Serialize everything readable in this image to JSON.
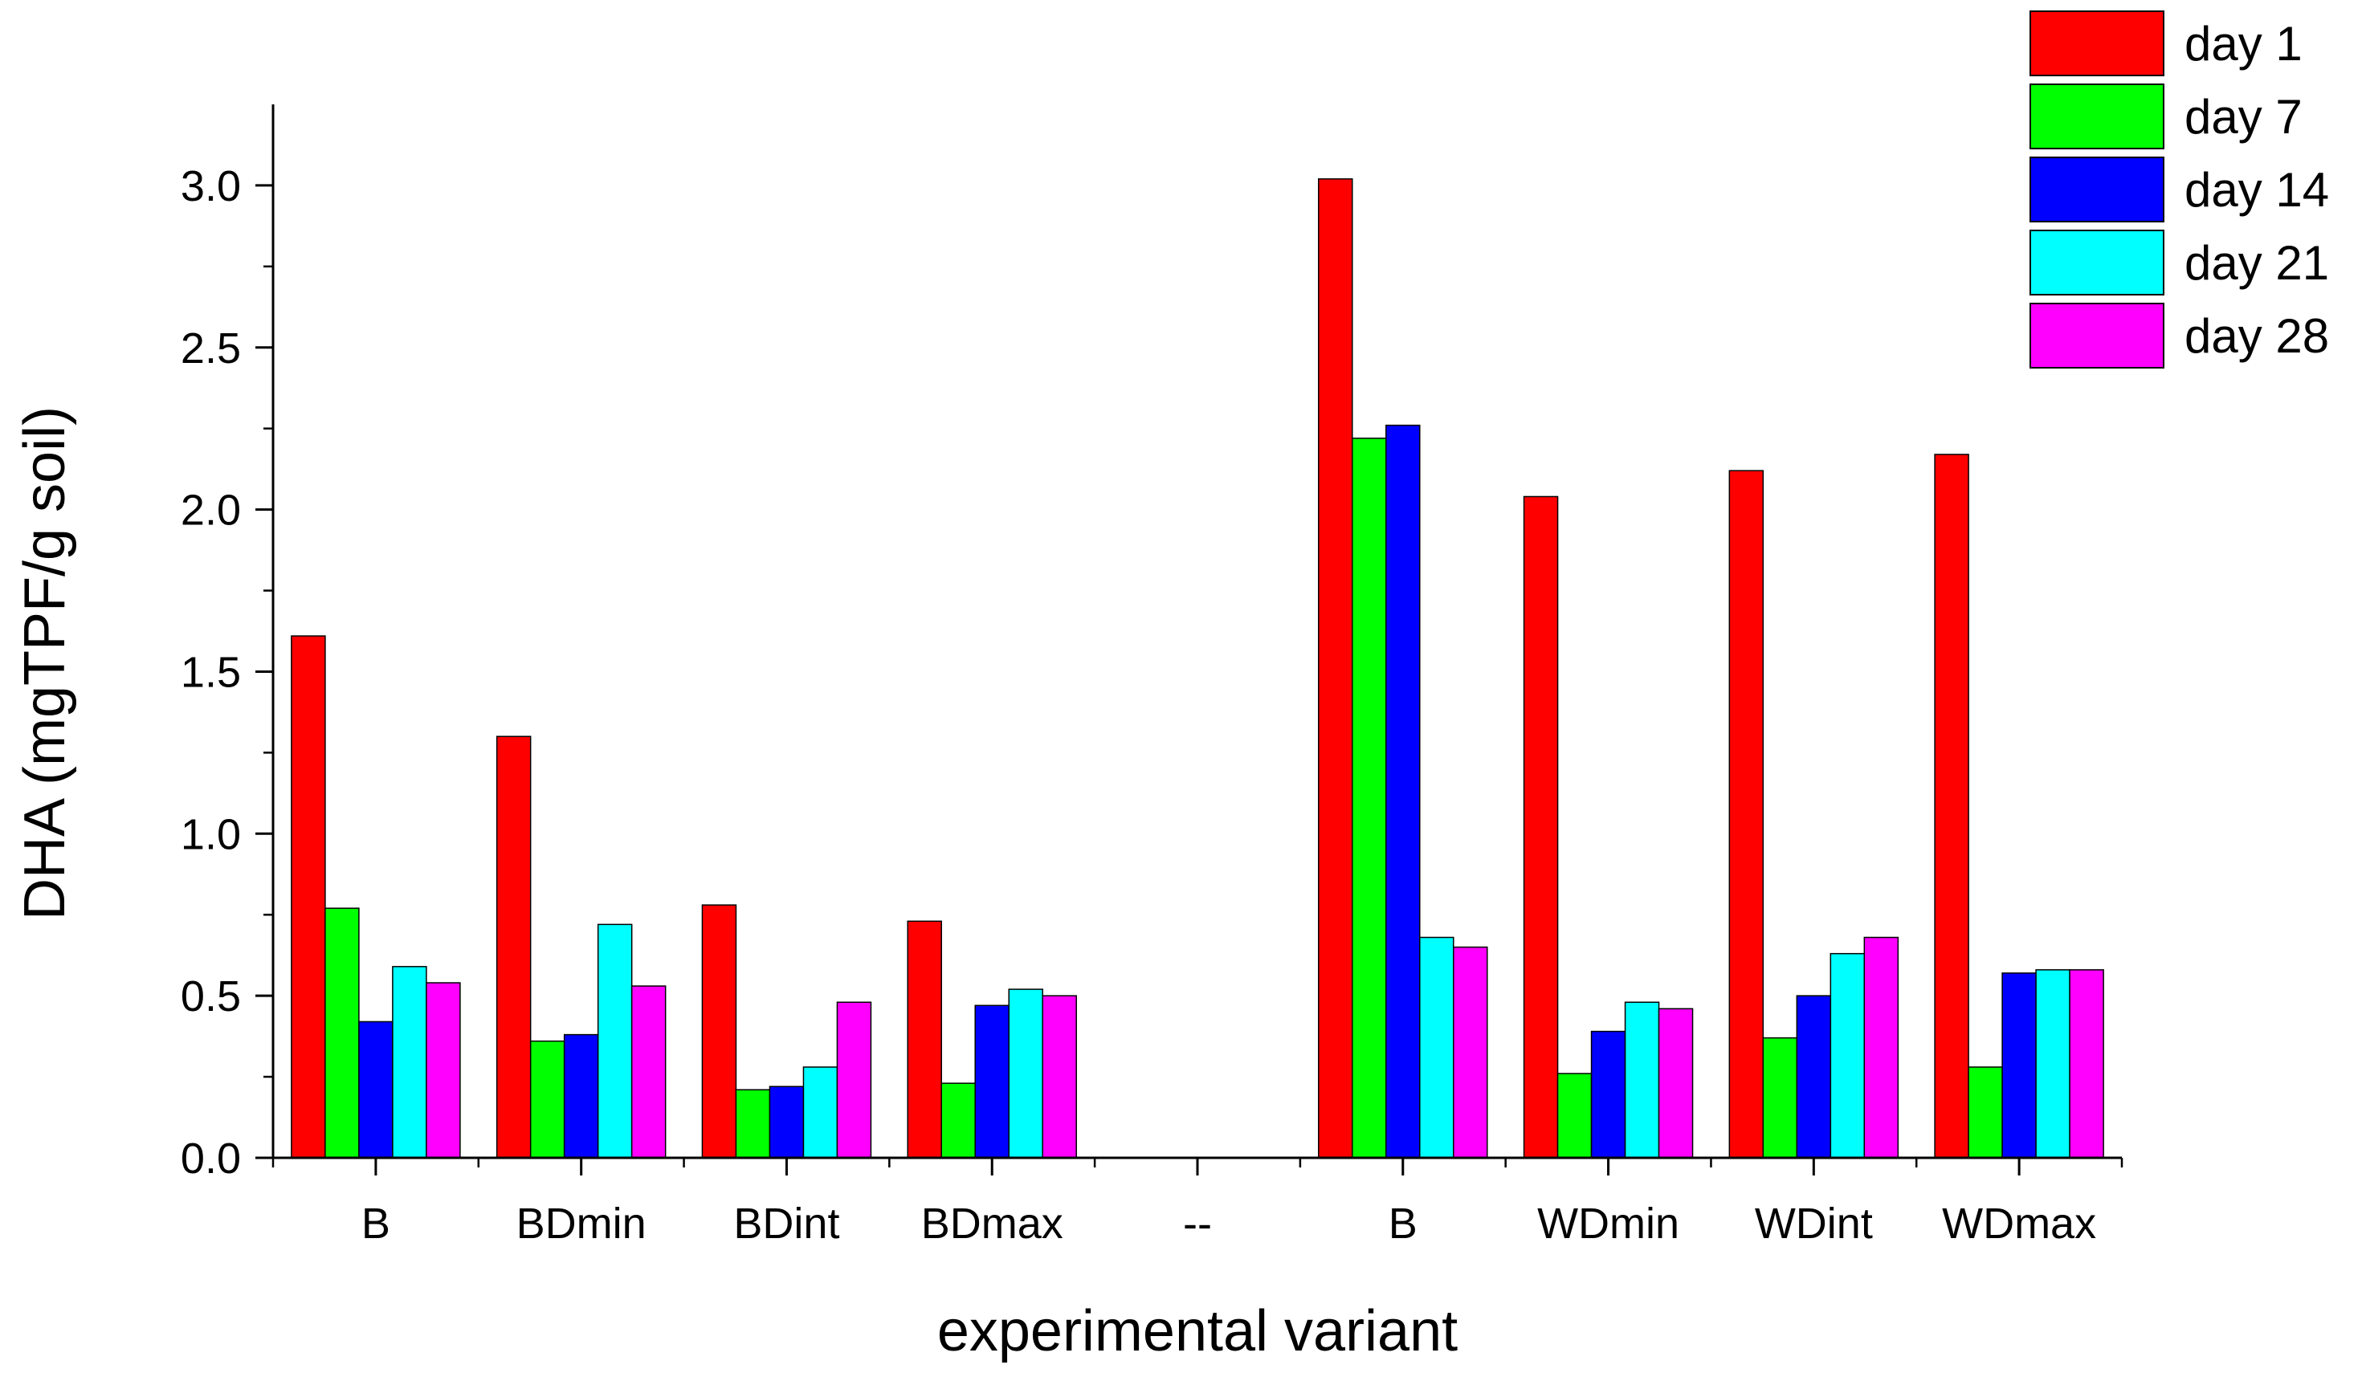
{
  "chart_data": {
    "type": "bar",
    "title": "",
    "xlabel": "experimental variant",
    "ylabel": "DHA (mgTPF/g soil)",
    "ylim": [
      0,
      3.25
    ],
    "yticks": [
      "0.0",
      "0.5",
      "1.0",
      "1.5",
      "2.0",
      "2.5",
      "3.0"
    ],
    "legend_position": "top-right",
    "grid": false,
    "categories": [
      "B",
      "BDmin",
      "BDint",
      "BDmax",
      "--",
      "B",
      "WDmin",
      "WDint",
      "WDmax"
    ],
    "series": [
      {
        "name": "day 1",
        "color": "#ff0000",
        "values": [
          1.61,
          1.3,
          0.78,
          0.73,
          null,
          3.02,
          2.04,
          2.12,
          2.17
        ]
      },
      {
        "name": "day 7",
        "color": "#00ff00",
        "values": [
          0.77,
          0.36,
          0.21,
          0.23,
          null,
          2.22,
          0.26,
          0.37,
          0.28
        ]
      },
      {
        "name": "day 14",
        "color": "#0000ff",
        "values": [
          0.42,
          0.38,
          0.22,
          0.47,
          null,
          2.26,
          0.39,
          0.5,
          0.57
        ]
      },
      {
        "name": "day 21",
        "color": "#00ffff",
        "values": [
          0.59,
          0.72,
          0.28,
          0.52,
          null,
          0.68,
          0.48,
          0.63,
          0.58
        ]
      },
      {
        "name": "day 28",
        "color": "#ff00ff",
        "values": [
          0.54,
          0.53,
          0.48,
          0.5,
          null,
          0.65,
          0.46,
          0.68,
          0.58
        ]
      }
    ]
  }
}
